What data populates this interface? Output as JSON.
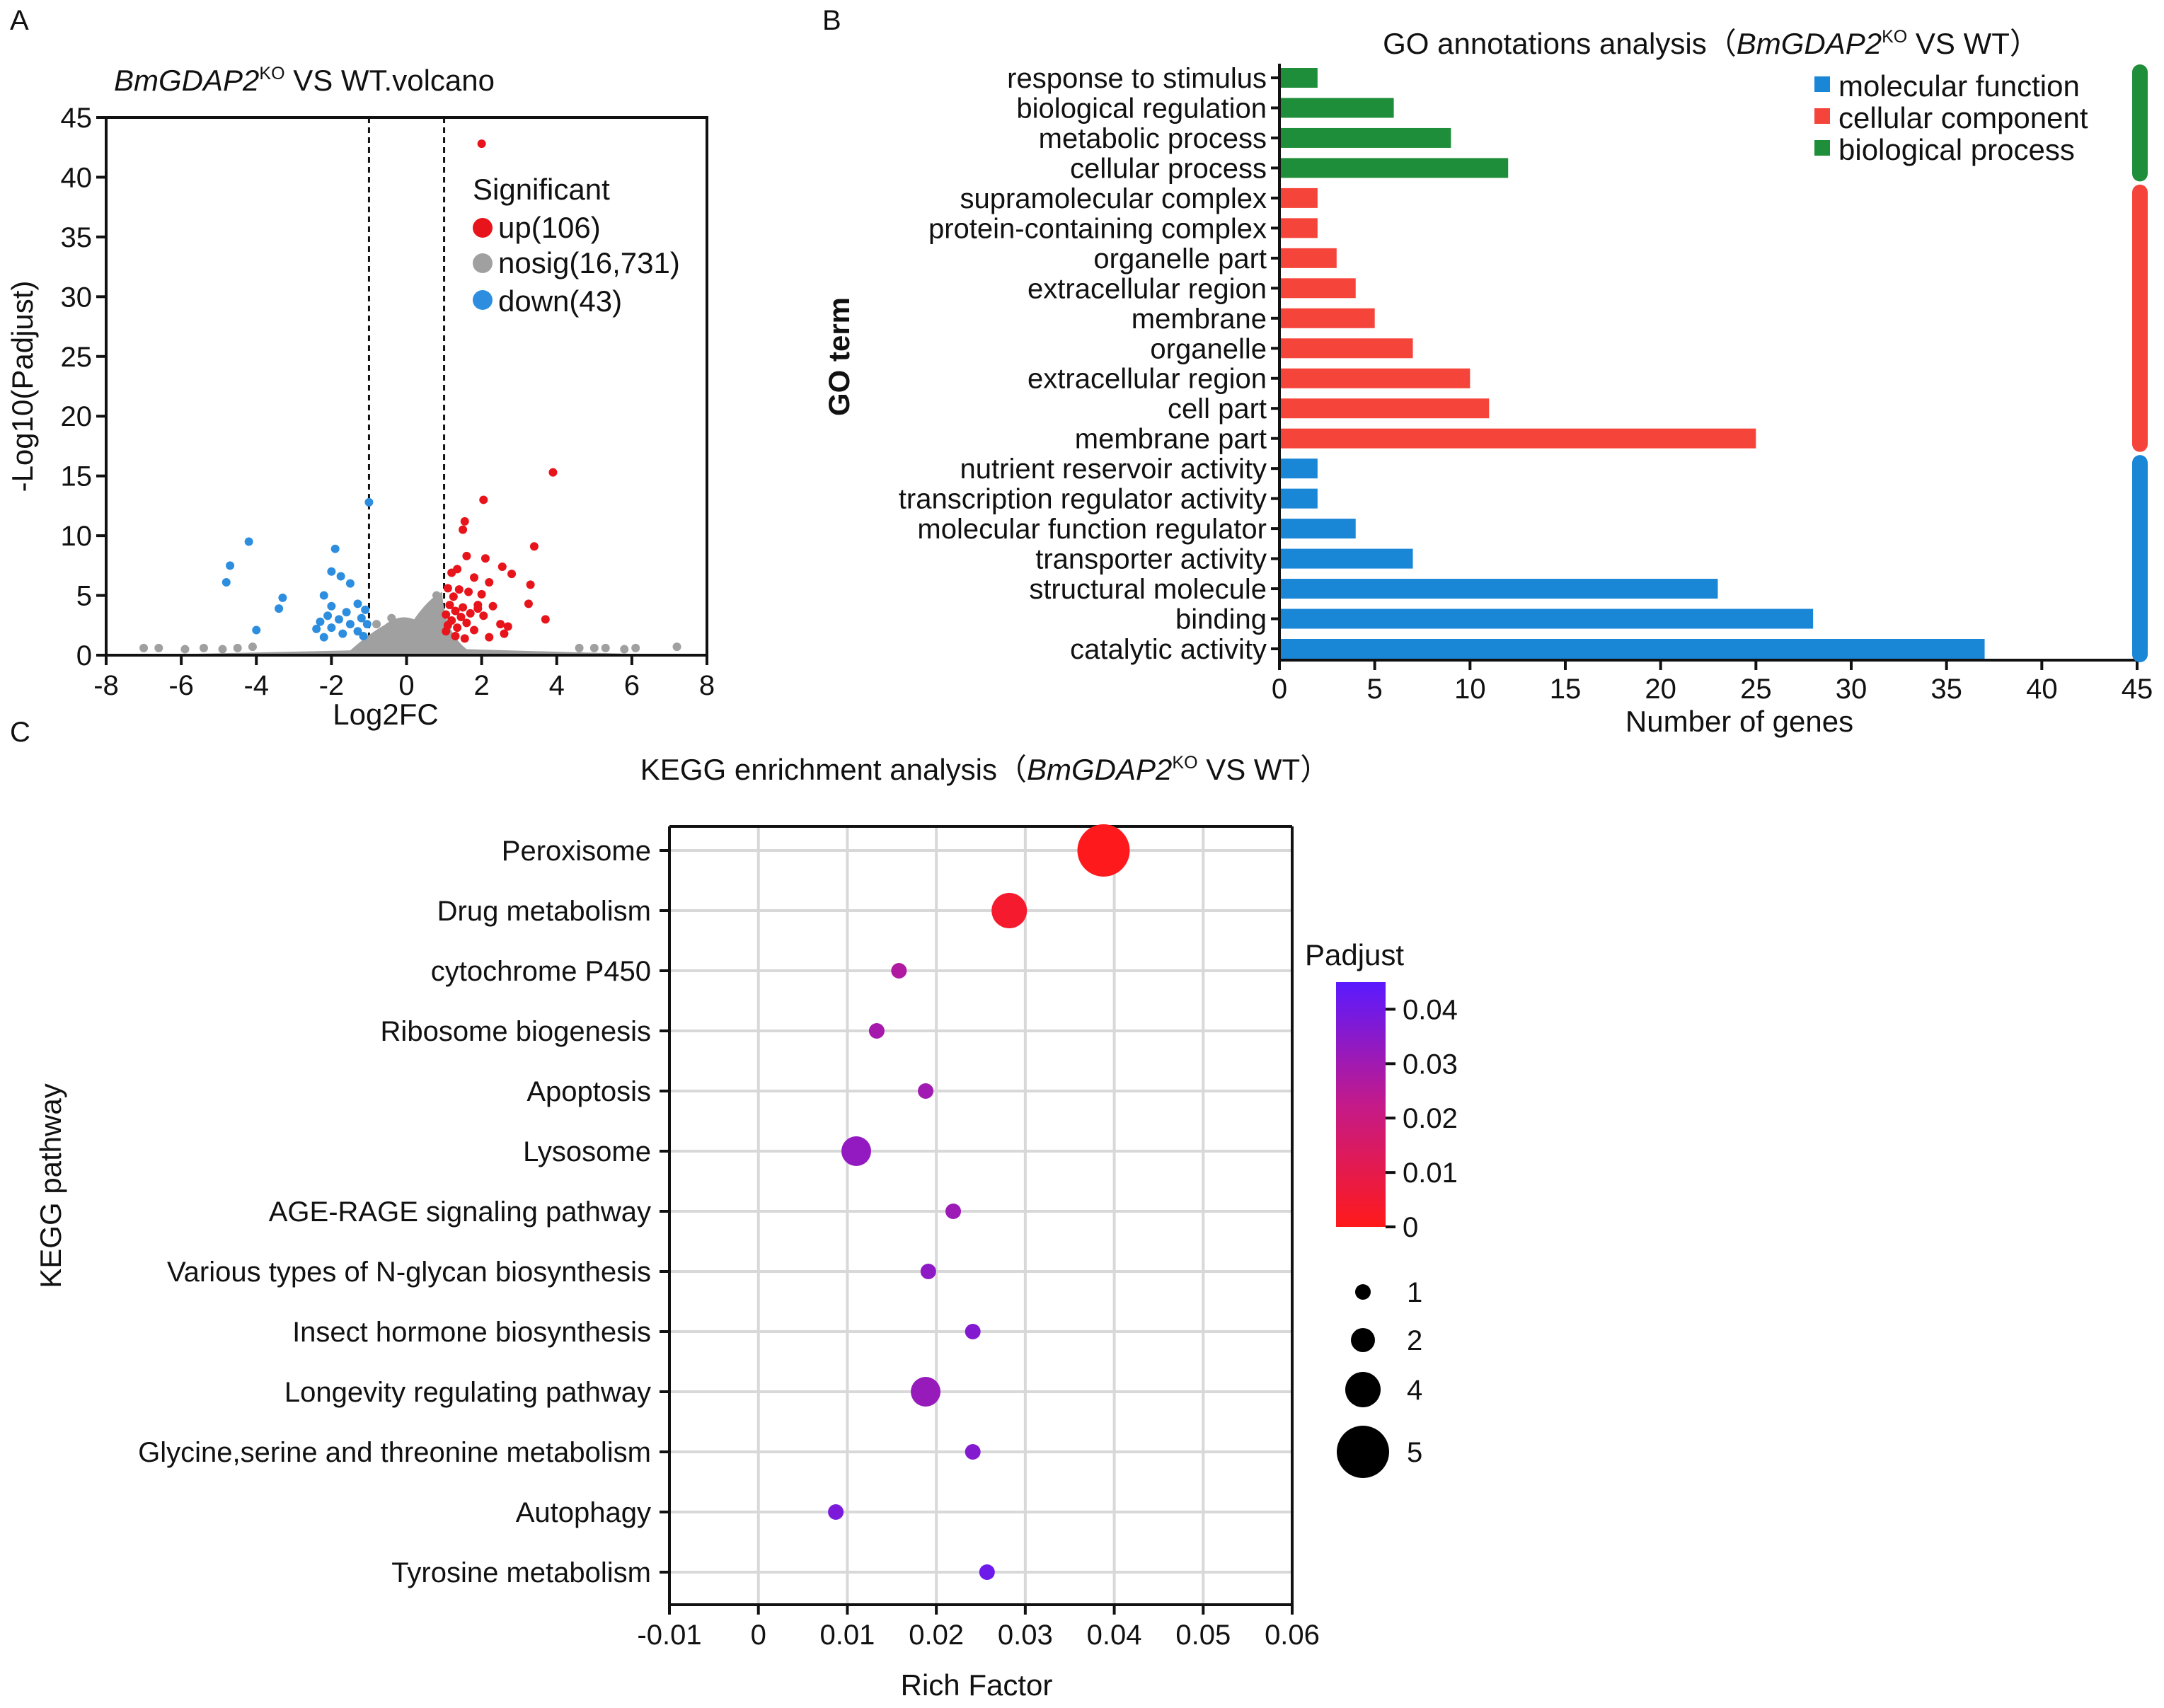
{
  "panels": {
    "A": "A",
    "B": "B",
    "C": "C"
  },
  "chart_data": [
    {
      "id": "volcano",
      "type": "scatter",
      "title_italic": "BmGDAP2",
      "title_sup": "KO",
      "title_rest": " VS WT.volcano",
      "xlabel": "Log2FC",
      "ylabel": "-Log10(Padjust)",
      "xlim": [
        -8,
        8
      ],
      "ylim": [
        0,
        45
      ],
      "xticks": [
        -8,
        -6,
        -4,
        -2,
        0,
        2,
        4,
        6,
        8
      ],
      "yticks": [
        0,
        5,
        10,
        15,
        20,
        25,
        30,
        35,
        40,
        45
      ],
      "threshold_lines_x": [
        -1,
        1
      ],
      "legend_title": "Significant",
      "legend": [
        {
          "label": "up(106)",
          "color": "#e8141b"
        },
        {
          "label": "nosig(16,731)",
          "color": "#a0a0a0"
        },
        {
          "label": "down(43)",
          "color": "#2d8ee0"
        }
      ],
      "series": [
        {
          "name": "up",
          "color": "#e8141b",
          "points": [
            [
              2.0,
              42.8
            ],
            [
              3.9,
              15.3
            ],
            [
              2.05,
              13.0
            ],
            [
              1.55,
              11.2
            ],
            [
              1.5,
              10.5
            ],
            [
              3.4,
              9.1
            ],
            [
              2.1,
              8.1
            ],
            [
              1.6,
              8.3
            ],
            [
              2.55,
              7.4
            ],
            [
              1.35,
              7.2
            ],
            [
              1.2,
              6.9
            ],
            [
              2.8,
              6.8
            ],
            [
              1.8,
              6.5
            ],
            [
              2.2,
              6.1
            ],
            [
              3.3,
              5.9
            ],
            [
              1.1,
              5.6
            ],
            [
              1.4,
              5.5
            ],
            [
              1.65,
              5.3
            ],
            [
              2.0,
              5.1
            ],
            [
              1.25,
              4.9
            ],
            [
              3.25,
              4.3
            ],
            [
              1.15,
              4.2
            ],
            [
              1.5,
              4.0
            ],
            [
              1.9,
              4.2
            ],
            [
              2.3,
              4.1
            ],
            [
              1.3,
              3.7
            ],
            [
              1.7,
              3.5
            ],
            [
              1.05,
              3.4
            ],
            [
              1.45,
              3.2
            ],
            [
              2.05,
              3.3
            ],
            [
              3.7,
              3.0
            ],
            [
              1.2,
              2.9
            ],
            [
              1.6,
              2.7
            ],
            [
              2.5,
              2.6
            ],
            [
              1.1,
              2.5
            ],
            [
              1.35,
              2.3
            ],
            [
              1.8,
              2.1
            ],
            [
              1.05,
              2.0
            ],
            [
              2.6,
              1.8
            ],
            [
              1.3,
              1.6
            ],
            [
              1.55,
              1.4
            ],
            [
              2.2,
              1.5
            ],
            [
              2.7,
              2.4
            ],
            [
              1.9,
              3.9
            ]
          ]
        },
        {
          "name": "down",
          "color": "#2d8ee0",
          "points": [
            [
              -1.0,
              12.8
            ],
            [
              -4.2,
              9.5
            ],
            [
              -1.9,
              8.9
            ],
            [
              -4.7,
              7.5
            ],
            [
              -2.0,
              7.0
            ],
            [
              -4.8,
              6.1
            ],
            [
              -1.75,
              6.6
            ],
            [
              -1.5,
              6.0
            ],
            [
              -2.2,
              5.0
            ],
            [
              -3.3,
              4.8
            ],
            [
              -1.3,
              4.3
            ],
            [
              -2.0,
              4.1
            ],
            [
              -3.4,
              3.9
            ],
            [
              -1.1,
              3.8
            ],
            [
              -1.6,
              3.6
            ],
            [
              -2.1,
              3.3
            ],
            [
              -1.2,
              3.1
            ],
            [
              -1.8,
              3.0
            ],
            [
              -2.3,
              2.8
            ],
            [
              -1.05,
              2.6
            ],
            [
              -1.5,
              2.6
            ],
            [
              -2.0,
              2.3
            ],
            [
              -4.0,
              2.1
            ],
            [
              -1.3,
              2.0
            ],
            [
              -2.4,
              2.2
            ],
            [
              -1.7,
              1.8
            ],
            [
              -1.15,
              1.6
            ],
            [
              -2.2,
              1.5
            ]
          ]
        }
      ]
    },
    {
      "id": "go_bar",
      "type": "bar",
      "orientation": "horizontal",
      "title_plain": "GO annotations analysis（",
      "title_italic": "BmGDAP2",
      "title_sup": "KO",
      "title_rest": " VS WT）",
      "xlabel": "Number of genes",
      "ylabel": "GO term",
      "xlim": [
        0,
        45
      ],
      "xticks": [
        0,
        5,
        10,
        15,
        20,
        25,
        30,
        35,
        40,
        45
      ],
      "legend": [
        {
          "label": "molecular function",
          "color": "#1a86d6"
        },
        {
          "label": "cellular component",
          "color": "#f5443a"
        },
        {
          "label": "biological process",
          "color": "#1f8e3a"
        }
      ],
      "categories": [
        {
          "label": "response to stimulus",
          "value": 2,
          "group": "biological process"
        },
        {
          "label": "biological regulation",
          "value": 6,
          "group": "biological process"
        },
        {
          "label": "metabolic process",
          "value": 9,
          "group": "biological process"
        },
        {
          "label": "cellular process",
          "value": 12,
          "group": "biological process"
        },
        {
          "label": "supramolecular complex",
          "value": 2,
          "group": "cellular component"
        },
        {
          "label": "protein-containing complex",
          "value": 2,
          "group": "cellular component"
        },
        {
          "label": "organelle part",
          "value": 3,
          "group": "cellular component"
        },
        {
          "label": "extracellular region",
          "value": 4,
          "group": "cellular component"
        },
        {
          "label": "membrane",
          "value": 5,
          "group": "cellular component"
        },
        {
          "label": "organelle",
          "value": 7,
          "group": "cellular component"
        },
        {
          "label": "extracellular region",
          "value": 10,
          "group": "cellular component"
        },
        {
          "label": "cell part",
          "value": 11,
          "group": "cellular component"
        },
        {
          "label": "membrane part",
          "value": 25,
          "group": "cellular component"
        },
        {
          "label": "nutrient reservoir activity",
          "value": 2,
          "group": "molecular function"
        },
        {
          "label": "transcription regulator activity",
          "value": 2,
          "group": "molecular function"
        },
        {
          "label": "molecular function regulator",
          "value": 4,
          "group": "molecular function"
        },
        {
          "label": "transporter activity",
          "value": 7,
          "group": "molecular function"
        },
        {
          "label": "structural molecule",
          "value": 23,
          "group": "molecular function"
        },
        {
          "label": "binding",
          "value": 28,
          "group": "molecular function"
        },
        {
          "label": "catalytic activity",
          "value": 37,
          "group": "molecular function"
        }
      ]
    },
    {
      "id": "kegg_bubble",
      "type": "scatter",
      "title_plain": "KEGG enrichment analysis（",
      "title_italic": "BmGDAP2",
      "title_sup": "KO",
      "title_rest": " VS WT）",
      "xlabel": "Rich Factor",
      "ylabel": "KEGG pathway",
      "xlim": [
        -0.01,
        0.06
      ],
      "xticks": [
        "-0.01",
        "0",
        "0.01",
        "0.02",
        "0.03",
        "0.04",
        "0.05",
        "0.06"
      ],
      "color_legend_title": "Padjust",
      "color_ticks": [
        "0.04",
        "0.03",
        "0.02",
        "0.01",
        "0"
      ],
      "color_range": [
        0,
        0.045
      ],
      "color_low": "#ff1a1a",
      "color_high": "#5a1aff",
      "size_legend": [
        "1",
        "2",
        "4",
        "5"
      ],
      "points": [
        {
          "label": "Peroxisome",
          "x": 0.0388,
          "count": 5,
          "padjust": 0.0005
        },
        {
          "label": "Drug metabolism",
          "x": 0.0282,
          "count": 4,
          "padjust": 0.004
        },
        {
          "label": "cytochrome P450",
          "x": 0.0158,
          "count": 1,
          "padjust": 0.027
        },
        {
          "label": "Ribosome biogenesis",
          "x": 0.0133,
          "count": 1,
          "padjust": 0.029
        },
        {
          "label": "Apoptosis",
          "x": 0.0188,
          "count": 1,
          "padjust": 0.03
        },
        {
          "label": "Lysosome",
          "x": 0.011,
          "count": 3,
          "padjust": 0.033
        },
        {
          "label": "AGE-RAGE signaling pathway",
          "x": 0.0219,
          "count": 1,
          "padjust": 0.031
        },
        {
          "label": "Various types of N-glycan biosynthesis",
          "x": 0.0191,
          "count": 1,
          "padjust": 0.034
        },
        {
          "label": "Insect hormone biosynthesis",
          "x": 0.0241,
          "count": 1,
          "padjust": 0.036
        },
        {
          "label": "Longevity regulating pathway",
          "x": 0.0188,
          "count": 3,
          "padjust": 0.032
        },
        {
          "label": "Glycine,serine and threonine metabolism",
          "x": 0.0241,
          "count": 1,
          "padjust": 0.036
        },
        {
          "label": "Autophagy",
          "x": 0.0087,
          "count": 1,
          "padjust": 0.038
        },
        {
          "label": "Tyrosine metabolism",
          "x": 0.0257,
          "count": 1,
          "padjust": 0.041
        }
      ]
    }
  ]
}
